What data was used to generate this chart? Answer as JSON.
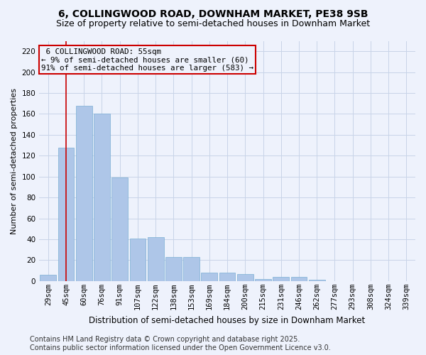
{
  "title": "6, COLLINGWOOD ROAD, DOWNHAM MARKET, PE38 9SB",
  "subtitle": "Size of property relative to semi-detached houses in Downham Market",
  "xlabel": "Distribution of semi-detached houses by size in Downham Market",
  "ylabel": "Number of semi-detached properties",
  "categories": [
    "29sqm",
    "45sqm",
    "60sqm",
    "76sqm",
    "91sqm",
    "107sqm",
    "122sqm",
    "138sqm",
    "153sqm",
    "169sqm",
    "184sqm",
    "200sqm",
    "215sqm",
    "231sqm",
    "246sqm",
    "262sqm",
    "277sqm",
    "293sqm",
    "308sqm",
    "324sqm",
    "339sqm"
  ],
  "values": [
    6,
    128,
    168,
    160,
    99,
    41,
    42,
    23,
    23,
    8,
    8,
    7,
    2,
    4,
    4,
    1,
    0,
    0,
    0,
    0,
    0
  ],
  "bar_color": "#aec6e8",
  "bar_edge_color": "#7bafd4",
  "subject_label": "6 COLLINGWOOD ROAD: 55sqm",
  "smaller_pct": "9%",
  "smaller_count": 60,
  "larger_pct": "91%",
  "larger_count": 583,
  "annotation_box_color": "#cc0000",
  "vline_color": "#cc0000",
  "vline_x": 1.0,
  "bg_color": "#eef2fc",
  "grid_color": "#c8d4e8",
  "ylim": [
    0,
    230
  ],
  "yticks": [
    0,
    20,
    40,
    60,
    80,
    100,
    120,
    140,
    160,
    180,
    200,
    220
  ],
  "footer_line1": "Contains HM Land Registry data © Crown copyright and database right 2025.",
  "footer_line2": "Contains public sector information licensed under the Open Government Licence v3.0.",
  "title_fontsize": 10,
  "subtitle_fontsize": 9,
  "tick_fontsize": 7.5,
  "footer_fontsize": 7
}
